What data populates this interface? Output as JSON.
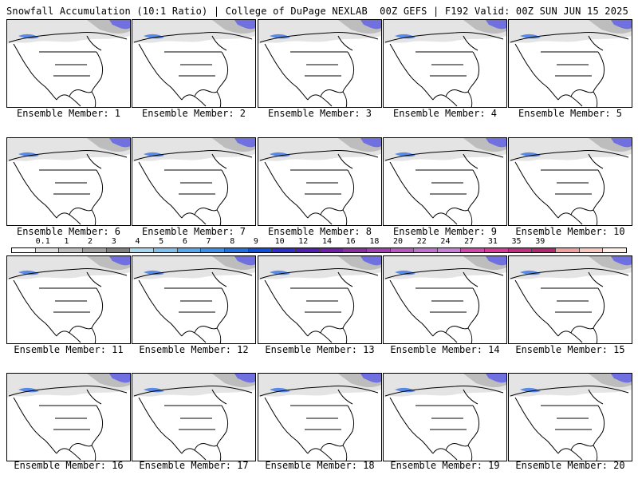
{
  "header": {
    "title_left": "Snowfall Accumulation (10:1 Ratio) | College of DuPage NEXLAB",
    "title_right": "00Z GEFS | F192 Valid: 00Z SUN JUN 15 2025"
  },
  "members": [
    "Ensemble Member: 1",
    "Ensemble Member: 2",
    "Ensemble Member: 3",
    "Ensemble Member: 4",
    "Ensemble Member: 5",
    "Ensemble Member: 6",
    "Ensemble Member: 7",
    "Ensemble Member: 8",
    "Ensemble Member: 9",
    "Ensemble Member: 10",
    "Ensemble Member: 11",
    "Ensemble Member: 12",
    "Ensemble Member: 13",
    "Ensemble Member: 14",
    "Ensemble Member: 15",
    "Ensemble Member: 16",
    "Ensemble Member: 17",
    "Ensemble Member: 18",
    "Ensemble Member: 19",
    "Ensemble Member: 20"
  ],
  "colorbar": {
    "labels": [
      "0.1",
      "1",
      "2",
      "3",
      "4",
      "5",
      "6",
      "7",
      "8",
      "9",
      "10",
      "12",
      "14",
      "16",
      "18",
      "20",
      "22",
      "24",
      "27",
      "31",
      "35",
      "39"
    ],
    "colors": [
      "#ffffff",
      "#e0e0e0",
      "#c0c0c0",
      "#a0a0a0",
      "#808080",
      "#a8d8f0",
      "#80c0f0",
      "#58a8f0",
      "#3890e8",
      "#2070e0",
      "#1050d8",
      "#3030c8",
      "#5020b0",
      "#7020a8",
      "#8830a0",
      "#a040b0",
      "#b858c0",
      "#c070d0",
      "#c880d8",
      "#d048a8",
      "#d83898",
      "#c03080",
      "#b02870",
      "#f0a0a0",
      "#f8c8c0",
      "#fff0e8"
    ]
  }
}
